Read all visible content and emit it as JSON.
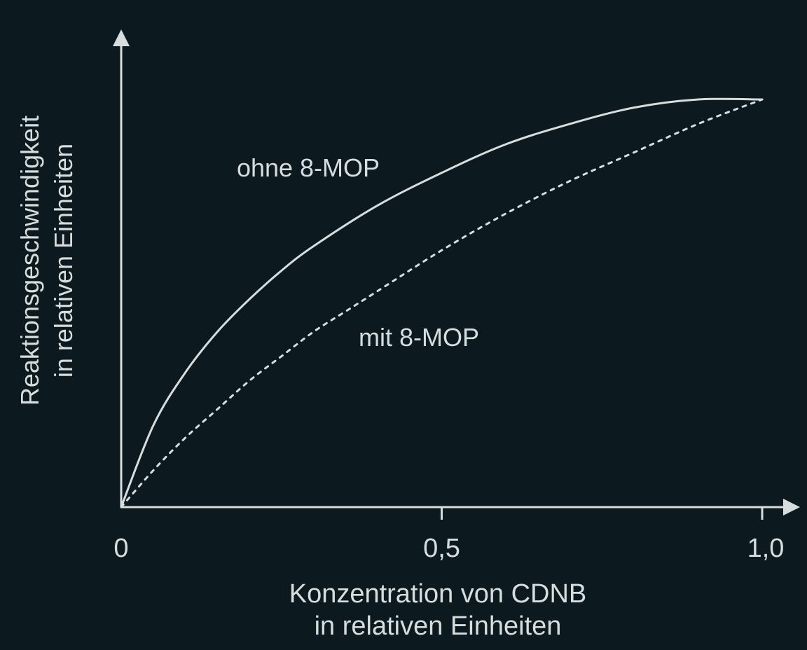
{
  "chart_data": {
    "type": "line",
    "xlabel": [
      "Konzentration von CDNB",
      "in relativen Einheiten"
    ],
    "ylabel": [
      "Reaktionsgeschwindigkeit",
      "in relativen Einheiten"
    ],
    "xlim": [
      0,
      1.0
    ],
    "x_ticks": [
      {
        "value": 0,
        "label": "0"
      },
      {
        "value": 0.5,
        "label": "0,5"
      },
      {
        "value": 1.0,
        "label": "1,0"
      }
    ],
    "grid": false,
    "series": [
      {
        "name": "ohne 8-MOP",
        "style": "solid",
        "x": [
          0,
          0.05,
          0.1,
          0.15,
          0.2,
          0.25,
          0.3,
          0.4,
          0.5,
          0.6,
          0.7,
          0.8,
          0.9,
          1.0
        ],
        "y": [
          0,
          0.2,
          0.33,
          0.43,
          0.51,
          0.58,
          0.64,
          0.74,
          0.82,
          0.89,
          0.94,
          0.98,
          1.0,
          1.0
        ]
      },
      {
        "name": "mit 8-MOP",
        "style": "dotted",
        "x": [
          0,
          0.05,
          0.1,
          0.15,
          0.2,
          0.25,
          0.3,
          0.35,
          0.4,
          0.5,
          0.6,
          0.7,
          0.8,
          0.9,
          1.0
        ],
        "y": [
          0,
          0.09,
          0.17,
          0.24,
          0.31,
          0.37,
          0.43,
          0.48,
          0.53,
          0.63,
          0.72,
          0.8,
          0.87,
          0.94,
          1.0
        ]
      }
    ]
  },
  "colors": {
    "background": "#0c1a1f",
    "foreground": "#d7dcdc"
  }
}
